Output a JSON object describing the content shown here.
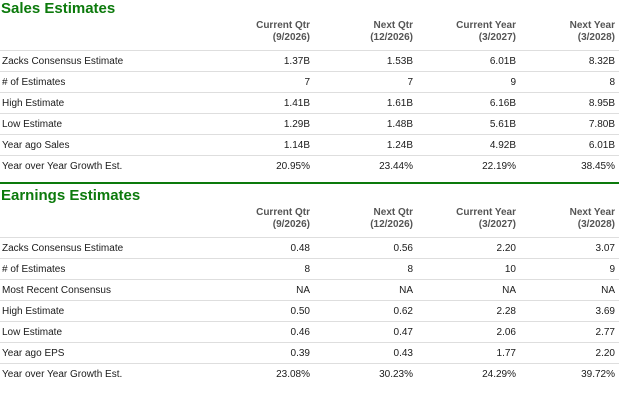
{
  "sales": {
    "title": "Sales Estimates",
    "columns": [
      {
        "line1": "Current Qtr",
        "line2": "(9/2026)"
      },
      {
        "line1": "Next Qtr",
        "line2": "(12/2026)"
      },
      {
        "line1": "Current Year",
        "line2": "(3/2027)"
      },
      {
        "line1": "Next Year",
        "line2": "(3/2028)"
      }
    ],
    "rows": [
      {
        "label": "Zacks Consensus Estimate",
        "values": [
          "1.37B",
          "1.53B",
          "6.01B",
          "8.32B"
        ]
      },
      {
        "label": "# of Estimates",
        "values": [
          "7",
          "7",
          "9",
          "8"
        ]
      },
      {
        "label": "High Estimate",
        "values": [
          "1.41B",
          "1.61B",
          "6.16B",
          "8.95B"
        ]
      },
      {
        "label": "Low Estimate",
        "values": [
          "1.29B",
          "1.48B",
          "5.61B",
          "7.80B"
        ]
      },
      {
        "label": "Year ago Sales",
        "values": [
          "1.14B",
          "1.24B",
          "4.92B",
          "6.01B"
        ]
      },
      {
        "label": "Year over Year Growth Est.",
        "values": [
          "20.95%",
          "23.44%",
          "22.19%",
          "38.45%"
        ]
      }
    ]
  },
  "earnings": {
    "title": "Earnings Estimates",
    "columns": [
      {
        "line1": "Current Qtr",
        "line2": "(9/2026)"
      },
      {
        "line1": "Next Qtr",
        "line2": "(12/2026)"
      },
      {
        "line1": "Current Year",
        "line2": "(3/2027)"
      },
      {
        "line1": "Next Year",
        "line2": "(3/2028)"
      }
    ],
    "rows": [
      {
        "label": "Zacks Consensus Estimate",
        "values": [
          "0.48",
          "0.56",
          "2.20",
          "3.07"
        ]
      },
      {
        "label": "# of Estimates",
        "values": [
          "8",
          "8",
          "10",
          "9"
        ]
      },
      {
        "label": "Most Recent Consensus",
        "values": [
          "NA",
          "NA",
          "NA",
          "NA"
        ]
      },
      {
        "label": "High Estimate",
        "values": [
          "0.50",
          "0.62",
          "2.28",
          "3.69"
        ]
      },
      {
        "label": "Low Estimate",
        "values": [
          "0.46",
          "0.47",
          "2.06",
          "2.77"
        ]
      },
      {
        "label": "Year ago EPS",
        "values": [
          "0.39",
          "0.43",
          "1.77",
          "2.20"
        ]
      },
      {
        "label": "Year over Year Growth Est.",
        "values": [
          "23.08%",
          "30.23%",
          "24.29%",
          "39.72%"
        ]
      }
    ]
  },
  "theme": {
    "title_color": "#0c7a0c",
    "separator_color": "#0c7a0c",
    "row_border_color": "#dedede",
    "header_text_color": "#555555"
  }
}
